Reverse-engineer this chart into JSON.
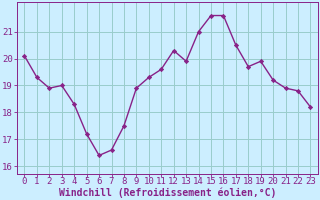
{
  "x": [
    0,
    1,
    2,
    3,
    4,
    5,
    6,
    7,
    8,
    9,
    10,
    11,
    12,
    13,
    14,
    15,
    16,
    17,
    18,
    19,
    20,
    21,
    22,
    23
  ],
  "y": [
    20.1,
    19.3,
    18.9,
    19.0,
    18.3,
    17.2,
    16.4,
    16.6,
    17.5,
    18.9,
    19.3,
    19.6,
    20.3,
    19.9,
    21.0,
    21.6,
    21.6,
    20.5,
    19.7,
    19.9,
    19.2,
    18.9,
    18.8,
    18.2
  ],
  "line_color": "#882288",
  "marker": "D",
  "marker_size": 2.2,
  "bg_color": "#cceeff",
  "grid_color": "#99cccc",
  "xlabel": "Windchill (Refroidissement éolien,°C)",
  "xlabel_color": "#882288",
  "tick_color": "#882288",
  "ylim": [
    15.7,
    22.1
  ],
  "yticks": [
    16,
    17,
    18,
    19,
    20,
    21
  ],
  "xticks": [
    0,
    1,
    2,
    3,
    4,
    5,
    6,
    7,
    8,
    9,
    10,
    11,
    12,
    13,
    14,
    15,
    16,
    17,
    18,
    19,
    20,
    21,
    22,
    23
  ],
  "line_width": 1.0,
  "tick_fontsize": 6.5,
  "xlabel_fontsize": 7.0
}
